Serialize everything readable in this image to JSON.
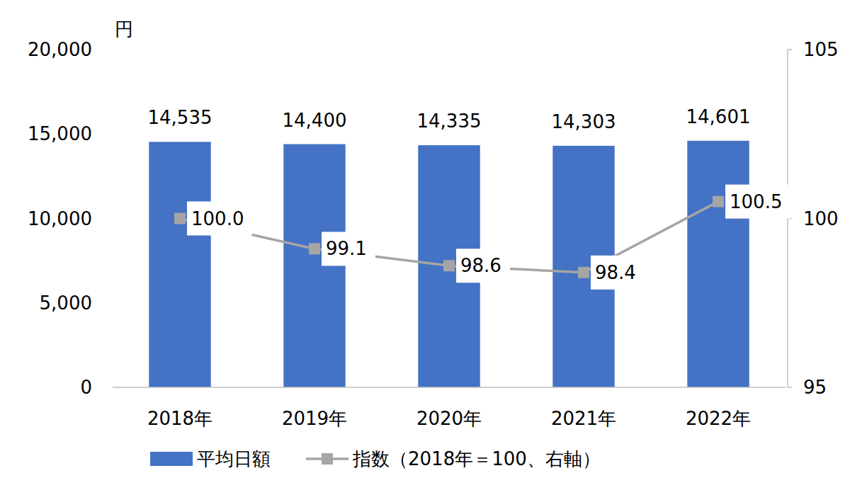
{
  "chart_data": {
    "type": "bar",
    "y_label": "円",
    "categories": [
      "2018年",
      "2019年",
      "2020年",
      "2021年",
      "2022年"
    ],
    "series": [
      {
        "name": "平均日額",
        "type": "bar",
        "color": "#4472c4",
        "axis": "y",
        "values": [
          14535,
          14400,
          14335,
          14303,
          14601
        ],
        "value_labels": [
          "14,535",
          "14,400",
          "14,335",
          "14,303",
          "14,601"
        ]
      },
      {
        "name": "指数（2018年＝100、右軸）",
        "type": "line",
        "color": "#a5a5a5",
        "axis": "y2",
        "marker": "square",
        "line_style": "solid",
        "values": [
          100.0,
          99.1,
          98.6,
          98.4,
          100.5
        ],
        "value_labels": [
          "100.0",
          "99.1",
          "98.6",
          "98.4",
          "100.5"
        ]
      }
    ],
    "ylim": [
      0,
      20000
    ],
    "yticks": [
      0,
      {
        "value": 5000,
        "label": "5,000"
      },
      {
        "value": 10000,
        "label": "10,000"
      },
      {
        "value": 15000,
        "label": "15,000"
      },
      {
        "value": 20000,
        "label": "20,000"
      }
    ],
    "y2lim": [
      95,
      105
    ],
    "y2ticks": [
      95,
      100,
      105
    ],
    "grid": false,
    "data_labels": true,
    "legend": "bottom"
  }
}
